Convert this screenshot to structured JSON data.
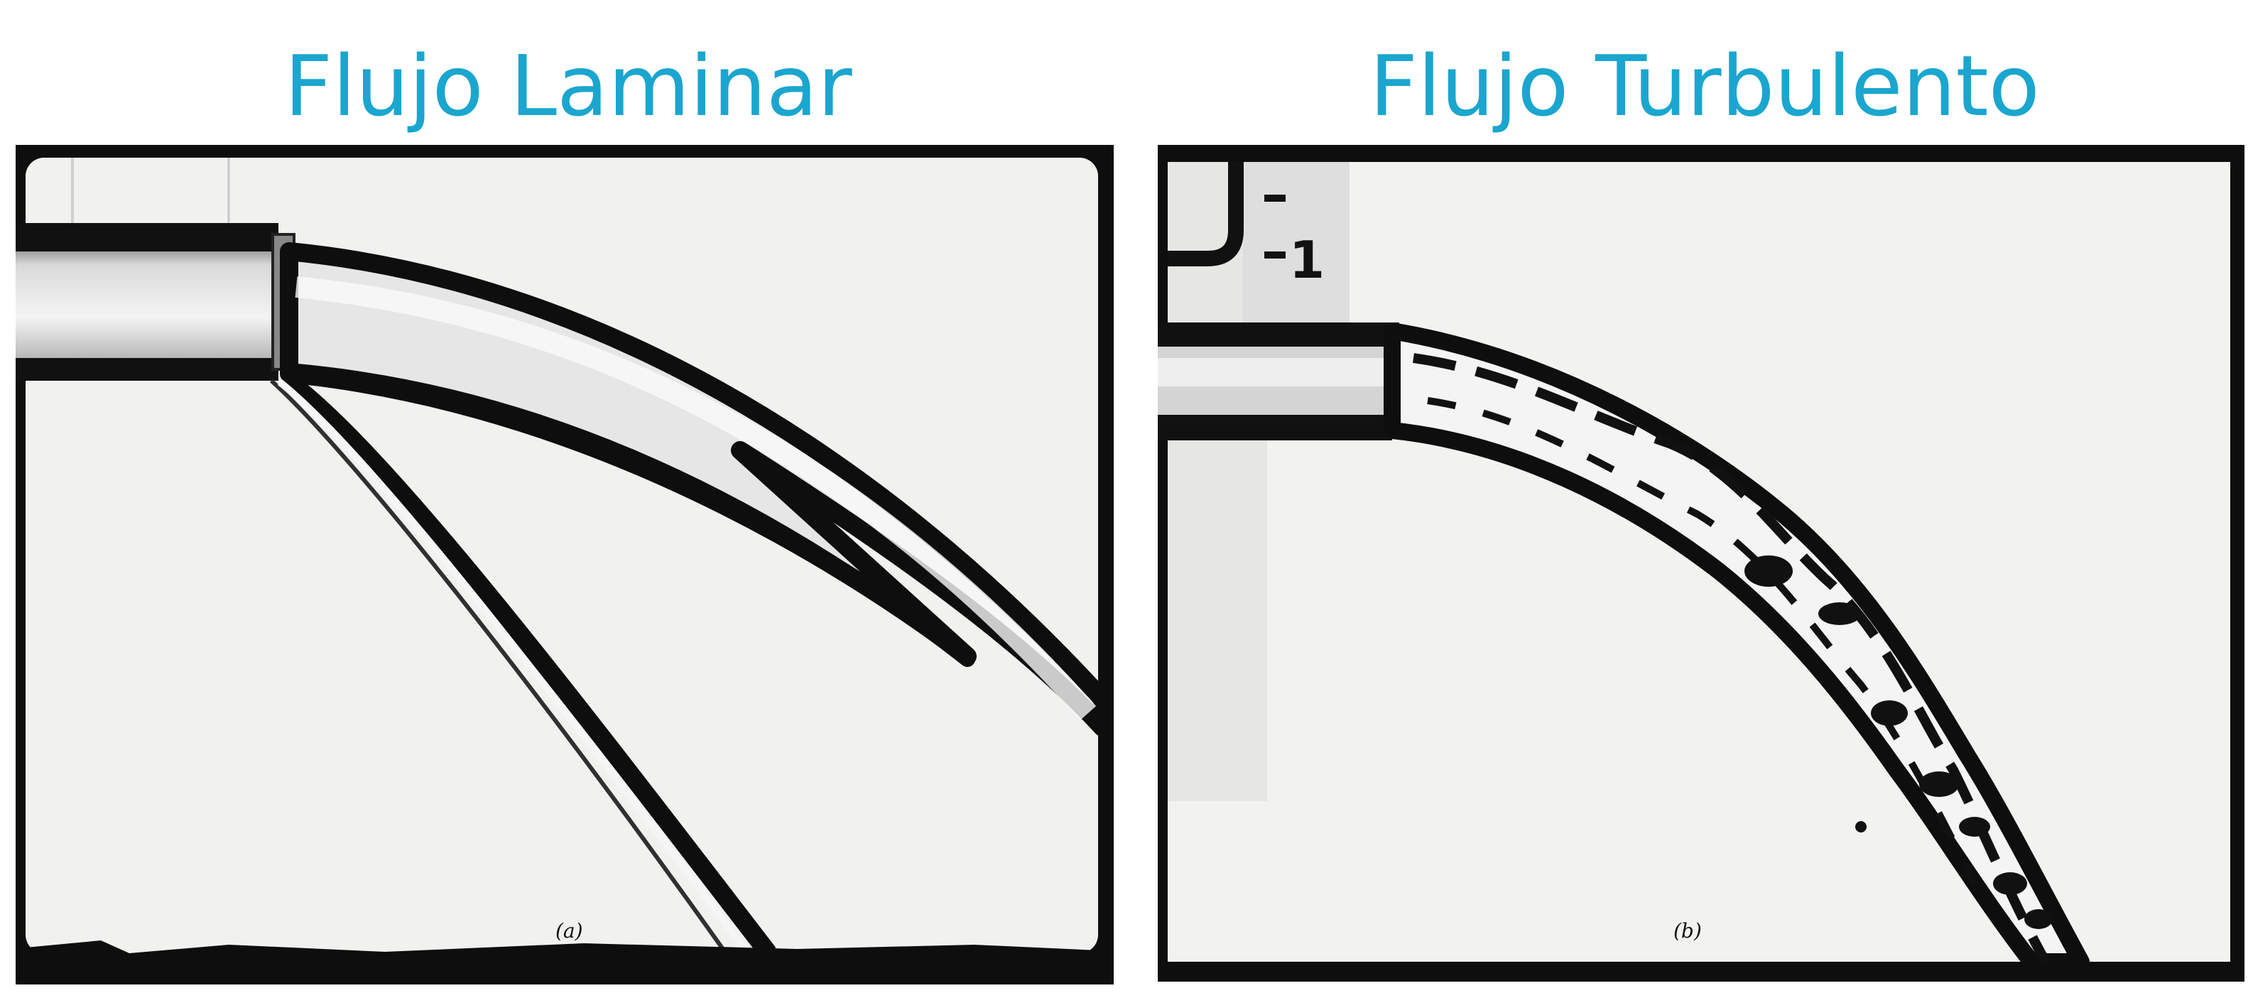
{
  "titles": {
    "left": "Flujo Laminar",
    "right": "Flujo Turbulento"
  },
  "photos": {
    "left": {
      "caption": "(a)"
    },
    "right": {
      "caption": "(b)",
      "scale_mark": "1"
    }
  },
  "colors": {
    "title": "#1aa6cf",
    "frame": "#0e0e0e",
    "paper": "#f1f1ef"
  }
}
